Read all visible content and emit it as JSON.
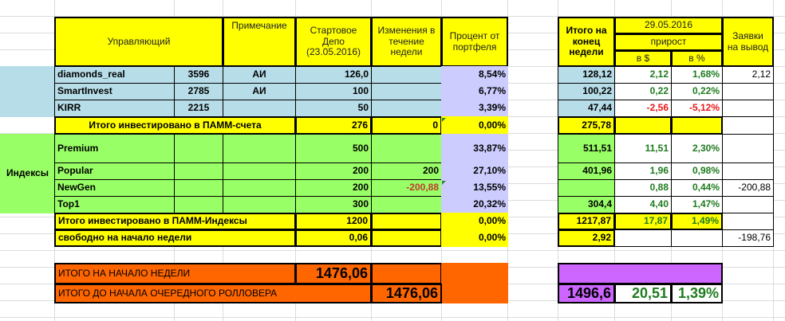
{
  "header": {
    "manager": "Управляющий",
    "note": "Примечание",
    "start_depo": "Стартовое Депо (23.05.2016)",
    "changes": "Изменения в течение недели",
    "percent": "Процент от портфеля",
    "end_total": "Итого на конец недели",
    "date": "29.05.2016",
    "growth": "прирост",
    "growth_usd": "в $",
    "growth_pct": "в %",
    "withdraw": "Заявки на вывод"
  },
  "managers": [
    {
      "name": "diamonds_real",
      "id": "3596",
      "note": "АИ",
      "start": "126,0",
      "change": "",
      "pct": "8,54%",
      "end": "128,12",
      "d_usd": "2,12",
      "d_pct": "1,68%",
      "withdraw": "2,12",
      "sign": "pos"
    },
    {
      "name": "SmartInvest",
      "id": "2785",
      "note": "АИ",
      "start": "100",
      "change": "",
      "pct": "6,77%",
      "end": "100,22",
      "d_usd": "0,22",
      "d_pct": "0,22%",
      "withdraw": "",
      "sign": "pos"
    },
    {
      "name": "KIRR",
      "id": "2215",
      "note": "",
      "start": "50",
      "change": "",
      "pct": "3,39%",
      "end": "47,44",
      "d_usd": "-2,56",
      "d_pct": "-5,12%",
      "withdraw": "",
      "sign": "neg"
    }
  ],
  "pamm_total": {
    "label": "Итого инвестировано в ПАММ-счета",
    "start": "276",
    "change": "0",
    "pct": "0,00%",
    "end": "275,78"
  },
  "indices_label": "Индексы",
  "indices": [
    {
      "name": "Premium",
      "start": "500",
      "change": "",
      "pct": "33,87%",
      "end": "511,51",
      "d_usd": "11,51",
      "d_pct": "2,30%",
      "withdraw": ""
    },
    {
      "name": "Popular",
      "start": "200",
      "change": "200",
      "pct": "27,10%",
      "end": "401,96",
      "d_usd": "1,96",
      "d_pct": "0,98%",
      "withdraw": ""
    },
    {
      "name": "NewGen",
      "start": "200",
      "change": "-200,88",
      "pct": "13,55%",
      "end": "",
      "d_usd": "0,88",
      "d_pct": "0,44%",
      "withdraw": "-200,88"
    },
    {
      "name": "Top1",
      "start": "300",
      "change": "",
      "pct": "20,32%",
      "end": "304,4",
      "d_usd": "4,40",
      "d_pct": "1,47%",
      "withdraw": ""
    }
  ],
  "index_total": {
    "label": "Итого инвестировано в ПАММ-Индексы",
    "start": "1200",
    "pct": "0,00%",
    "end": "1217,87",
    "d_usd": "17,87",
    "d_pct": "1,49%"
  },
  "free": {
    "label": "свободно на начало недели",
    "start": "0,06",
    "pct": "0,00%",
    "end": "2,92",
    "withdraw": "-198,76"
  },
  "week_start_total": {
    "label": "ИТОГО НА НАЧАЛО НЕДЕЛИ",
    "value": "1476,06"
  },
  "rollover_total": {
    "label": "ИТОГО ДО НАЧАЛА ОЧЕРЕДНОГО РОЛЛОВЕРА",
    "value": "1476,06"
  },
  "grand": {
    "end": "1496,6",
    "d_usd": "20,51",
    "d_pct": "1,39%"
  },
  "colors": {
    "header": "#ffff00",
    "indices": "#99ff66",
    "managers": "#b7dde8",
    "percent": "#ccccff",
    "summary": "#ff6600",
    "grand": "#cc66ff",
    "positive": "#1e7b1e",
    "negative": "#e8161b"
  }
}
